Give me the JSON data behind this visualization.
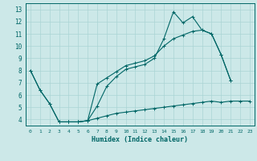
{
  "xlabel": "Humidex (Indice chaleur)",
  "bg_color": "#cce8e8",
  "line_color": "#006666",
  "grid_color": "#aad4d4",
  "xlim": [
    -0.5,
    23.5
  ],
  "ylim": [
    3.5,
    13.5
  ],
  "xticks": [
    0,
    1,
    2,
    3,
    4,
    5,
    6,
    7,
    8,
    9,
    10,
    11,
    12,
    13,
    14,
    15,
    16,
    17,
    18,
    19,
    20,
    21,
    22,
    23
  ],
  "yticks": [
    4,
    5,
    6,
    7,
    8,
    9,
    10,
    11,
    12,
    13
  ],
  "line1_x": [
    0,
    1,
    2,
    3,
    4,
    5,
    6,
    7,
    8,
    9,
    10,
    11,
    12,
    13,
    14,
    15,
    16,
    17,
    18,
    19,
    20,
    21
  ],
  "line1_y": [
    8.0,
    6.4,
    5.3,
    3.8,
    3.8,
    3.8,
    3.9,
    5.1,
    6.7,
    7.5,
    8.1,
    8.3,
    8.5,
    9.0,
    10.6,
    12.8,
    11.9,
    12.4,
    11.3,
    11.0,
    9.3,
    7.2
  ],
  "line2_x": [
    0,
    1,
    2,
    3,
    4,
    5,
    6,
    7,
    8,
    9,
    10,
    11,
    12,
    13,
    14,
    15,
    16,
    17,
    18,
    19,
    20,
    21
  ],
  "line2_y": [
    8.0,
    6.4,
    5.3,
    3.8,
    3.8,
    3.8,
    3.9,
    6.9,
    7.4,
    7.9,
    8.4,
    8.6,
    8.8,
    9.2,
    10.0,
    10.6,
    10.9,
    11.2,
    11.3,
    11.0,
    9.3,
    7.2
  ],
  "line3_x": [
    3,
    4,
    5,
    6,
    7,
    8,
    9,
    10,
    11,
    12,
    13,
    14,
    15,
    16,
    17,
    18,
    19,
    20,
    21,
    22,
    23
  ],
  "line3_y": [
    3.8,
    3.8,
    3.8,
    3.9,
    4.1,
    4.3,
    4.5,
    4.6,
    4.7,
    4.8,
    4.9,
    5.0,
    5.1,
    5.2,
    5.3,
    5.4,
    5.5,
    5.4,
    5.5,
    5.5,
    5.5
  ]
}
